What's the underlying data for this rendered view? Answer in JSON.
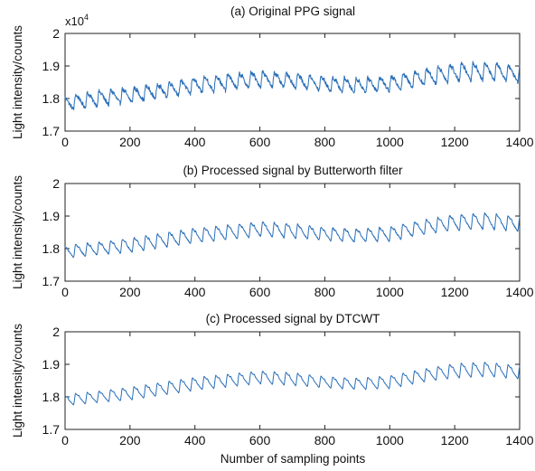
{
  "chart_data": [
    {
      "type": "line",
      "title": "(a) Original PPG signal",
      "ylabel": "Light intensity/counts",
      "xlabel": "",
      "xlim": [
        0,
        1400
      ],
      "ylim": [
        1.7,
        2.0
      ],
      "y_multiplier": "x10",
      "y_multiplier_exponent": "4",
      "xticks": [
        "0",
        "200",
        "400",
        "600",
        "800",
        "1000",
        "1200",
        "1400"
      ],
      "yticks": [
        "1.7",
        "1.8",
        "1.9",
        "2"
      ],
      "grid": false,
      "color": "#2a6fb8",
      "beat_period": 36,
      "noise": 0.012,
      "series": [
        {
          "x": [
            0,
            100,
            200,
            300,
            400,
            500,
            600,
            700,
            800,
            900,
            1000,
            1100,
            1200,
            1300,
            1400
          ],
          "baseline": [
            1.785,
            1.8,
            1.81,
            1.825,
            1.84,
            1.85,
            1.86,
            1.855,
            1.845,
            1.84,
            1.845,
            1.865,
            1.88,
            1.885,
            1.875
          ],
          "amplitude": [
            0.045,
            0.045,
            0.045,
            0.045,
            0.05,
            0.05,
            0.05,
            0.045,
            0.045,
            0.045,
            0.045,
            0.05,
            0.055,
            0.055,
            0.05
          ]
        }
      ]
    },
    {
      "type": "line",
      "title": "(b) Processed signal by Butterworth filter",
      "ylabel": "Light intensity/counts",
      "xlabel": "",
      "xlim": [
        0,
        1400
      ],
      "ylim": [
        1.7,
        2.0
      ],
      "xticks": [
        "0",
        "200",
        "400",
        "600",
        "800",
        "1000",
        "1200",
        "1400"
      ],
      "yticks": [
        "1.7",
        "1.8",
        "1.9",
        "2"
      ],
      "grid": false,
      "color": "#2a6fb8",
      "beat_period": 36,
      "noise": 0.004,
      "series": [
        {
          "x": [
            0,
            100,
            200,
            300,
            400,
            500,
            600,
            700,
            800,
            900,
            1000,
            1100,
            1200,
            1300,
            1400
          ],
          "baseline": [
            1.79,
            1.8,
            1.81,
            1.825,
            1.84,
            1.85,
            1.86,
            1.855,
            1.845,
            1.84,
            1.845,
            1.865,
            1.88,
            1.885,
            1.875
          ],
          "amplitude": [
            0.04,
            0.04,
            0.045,
            0.045,
            0.045,
            0.045,
            0.045,
            0.045,
            0.04,
            0.04,
            0.045,
            0.045,
            0.05,
            0.05,
            0.045
          ]
        }
      ]
    },
    {
      "type": "line",
      "title": "(c) Processed signal by DTCWT",
      "ylabel": "Light intensity/counts",
      "xlabel": "Number of sampling points",
      "xlim": [
        0,
        1400
      ],
      "ylim": [
        1.7,
        2.0
      ],
      "xticks": [
        "0",
        "200",
        "400",
        "600",
        "800",
        "1000",
        "1200",
        "1400"
      ],
      "yticks": [
        "1.7",
        "1.8",
        "1.9",
        "2"
      ],
      "grid": false,
      "color": "#2a6fb8",
      "beat_period": 36,
      "noise": 0.0015,
      "series": [
        {
          "x": [
            0,
            100,
            200,
            300,
            400,
            500,
            600,
            700,
            800,
            900,
            1000,
            1100,
            1200,
            1300,
            1400
          ],
          "baseline": [
            1.79,
            1.8,
            1.81,
            1.825,
            1.84,
            1.85,
            1.86,
            1.855,
            1.845,
            1.84,
            1.845,
            1.865,
            1.88,
            1.885,
            1.875
          ],
          "amplitude": [
            0.035,
            0.035,
            0.04,
            0.04,
            0.04,
            0.04,
            0.04,
            0.04,
            0.035,
            0.035,
            0.04,
            0.04,
            0.045,
            0.045,
            0.04
          ]
        }
      ]
    }
  ]
}
